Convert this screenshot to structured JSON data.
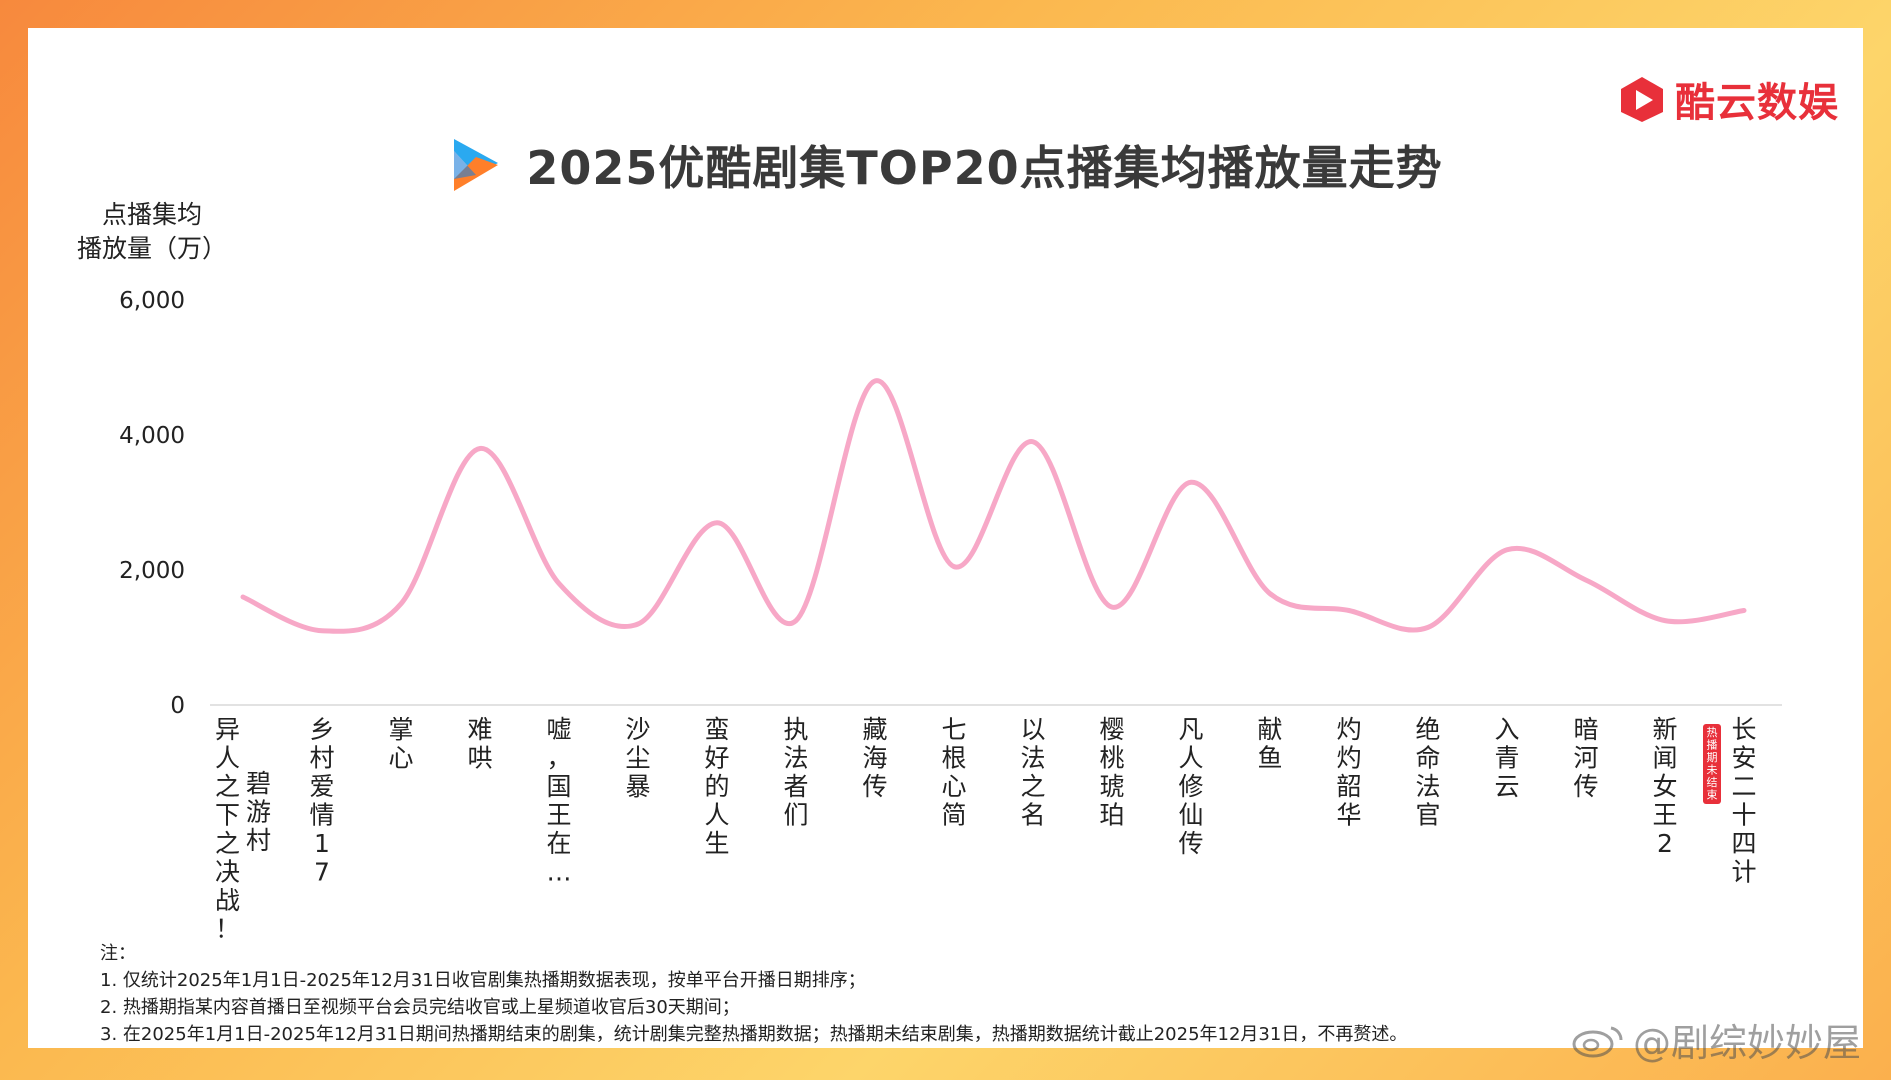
{
  "brand": {
    "name": "酷云数娱",
    "logo_icon": "kuyun-play-icon",
    "color": "#e8303a"
  },
  "header": {
    "title": "2025优酷剧集TOP20点播集均播放量走势",
    "logo_icon": "youku-logo-icon"
  },
  "chart_data": {
    "type": "line",
    "title": "2025优酷剧集TOP20点播集均播放量走势",
    "ylabel_lines": [
      "点播集均",
      "播放量（万）"
    ],
    "xlabel": "",
    "ylim": [
      0,
      6000
    ],
    "yticks": [
      0,
      2000,
      4000,
      6000
    ],
    "ytick_labels": [
      "0",
      "2,000",
      "4,000",
      "6,000"
    ],
    "line_color": "#f7a8c7",
    "categories": [
      {
        "lines": [
          "异人之下之决战！",
          "碧游村"
        ],
        "badge": ""
      },
      {
        "lines": [
          "乡村爱情17"
        ],
        "badge": ""
      },
      {
        "lines": [
          "掌心"
        ],
        "badge": ""
      },
      {
        "lines": [
          "难哄"
        ],
        "badge": ""
      },
      {
        "lines": [
          "嘘，国王在…"
        ],
        "badge": ""
      },
      {
        "lines": [
          "沙尘暴"
        ],
        "badge": ""
      },
      {
        "lines": [
          "蛮好的人生"
        ],
        "badge": ""
      },
      {
        "lines": [
          "执法者们"
        ],
        "badge": ""
      },
      {
        "lines": [
          "藏海传"
        ],
        "badge": ""
      },
      {
        "lines": [
          "七根心简"
        ],
        "badge": ""
      },
      {
        "lines": [
          "以法之名"
        ],
        "badge": ""
      },
      {
        "lines": [
          "樱桃琥珀"
        ],
        "badge": ""
      },
      {
        "lines": [
          "凡人修仙传"
        ],
        "badge": ""
      },
      {
        "lines": [
          "献鱼"
        ],
        "badge": ""
      },
      {
        "lines": [
          "灼灼韶华"
        ],
        "badge": ""
      },
      {
        "lines": [
          "绝命法官"
        ],
        "badge": ""
      },
      {
        "lines": [
          "入青云"
        ],
        "badge": ""
      },
      {
        "lines": [
          "暗河传"
        ],
        "badge": ""
      },
      {
        "lines": [
          "新闻女王2"
        ],
        "badge": ""
      },
      {
        "lines": [
          "长安二十四计"
        ],
        "badge": "热播期未结束"
      }
    ],
    "values": [
      1600,
      1100,
      1500,
      3800,
      1800,
      1200,
      2700,
      1250,
      4800,
      2050,
      3900,
      1450,
      3300,
      1650,
      1400,
      1150,
      2300,
      1850,
      1250,
      1400
    ]
  },
  "notes": {
    "heading": "注：",
    "lines": [
      "1. 仅统计2025年1月1日-2025年12月31日收官剧集热播期数据表现，按单平台开播日期排序；",
      "2. 热播期指某内容首播日至视频平台会员完结收官或上星频道收官后30天期间；",
      "3. 在2025年1月1日-2025年12月31日期间热播期结束的剧集，统计剧集完整热播期数据；热播期未结束剧集，热播期数据统计截止2025年12月31日，不再赘述。"
    ]
  },
  "watermark": {
    "text": "@剧综妙妙屋",
    "icon": "weibo-icon"
  }
}
